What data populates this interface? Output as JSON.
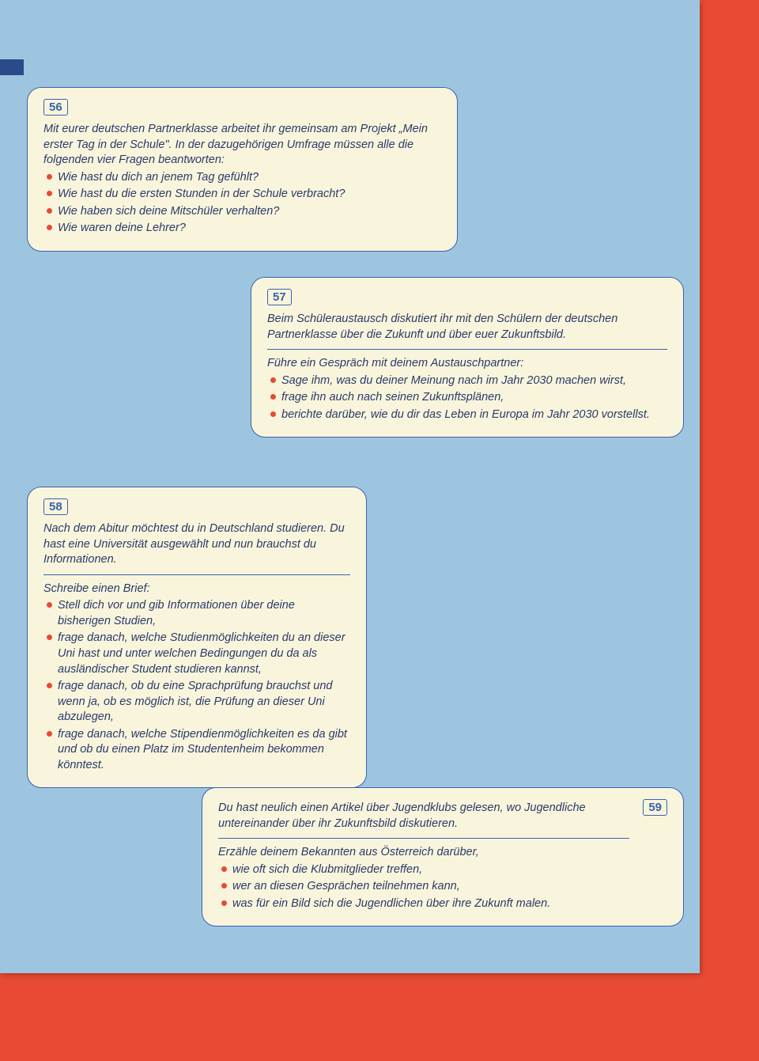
{
  "colors": {
    "page_bg": "#e84a33",
    "sheet_bg": "#9ec5df",
    "card_bg": "#f9f5dc",
    "card_border": "#3a62af",
    "text": "#2a3a6a",
    "bullet": "#e84a33"
  },
  "cards": {
    "c56": {
      "num": "56",
      "intro": "Mit eurer deutschen Partnerklasse arbeitet ihr gemeinsam am Projekt „Mein erster Tag in der Schule\". In der dazugehörigen Umfrage müssen alle die folgenden vier Fragen beantworten:",
      "bullets": [
        "Wie hast du dich an jenem Tag gefühlt?",
        "Wie hast du die ersten Stunden in der Schule verbracht?",
        "Wie haben sich deine Mitschüler verhalten?",
        "Wie waren deine Lehrer?"
      ]
    },
    "c57": {
      "num": "57",
      "intro": "Beim Schüleraustausch diskutiert ihr mit den Schülern der deutschen Partnerklasse über die Zukunft und über euer Zukunftsbild.",
      "lead": "Führe ein Gespräch mit deinem Austauschpartner:",
      "bullets": [
        "Sage ihm, was du deiner Meinung nach im Jahr 2030 machen wirst,",
        "frage ihn auch nach seinen Zukunftsplänen,",
        "berichte darüber, wie du dir das Leben in Europa im Jahr 2030 vorstellst."
      ]
    },
    "c58": {
      "num": "58",
      "intro": "Nach dem Abitur möchtest du in Deutschland studieren. Du hast eine Universität ausgewählt und nun brauchst du Informationen.",
      "lead": "Schreibe einen Brief:",
      "bullets": [
        "Stell dich vor und gib Informationen über deine bisherigen Studien,",
        "frage danach, welche Studienmöglichkeiten du an dieser Uni hast und unter welchen Bedingungen du da als ausländischer Student studieren kannst,",
        "frage danach, ob du eine Sprachprüfung brauchst und wenn ja, ob es möglich ist, die Prüfung an dieser Uni abzulegen,",
        "frage danach, welche Stipendienmöglichkeiten es da gibt und ob du einen Platz im Studentenheim bekommen könntest."
      ]
    },
    "c59": {
      "num": "59",
      "intro": "Du hast neulich einen Artikel über Jugendklubs gelesen, wo Jugendliche untereinander über ihr Zukunftsbild diskutieren.",
      "lead": "Erzähle deinem Bekannten aus Österreich darüber,",
      "bullets": [
        "wie oft sich die Klubmitglieder treffen,",
        "wer an diesen Gesprächen teilnehmen kann,",
        "was für ein Bild sich die Jugendlichen über ihre Zukunft malen."
      ]
    }
  }
}
